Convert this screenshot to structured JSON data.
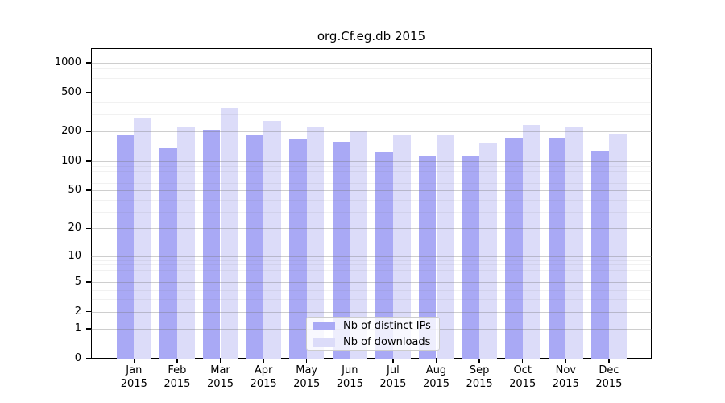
{
  "chart_data": {
    "type": "bar",
    "title": "org.Cf.eg.db 2015",
    "categories": [
      "Jan",
      "Feb",
      "Mar",
      "Apr",
      "May",
      "Jun",
      "Jul",
      "Aug",
      "Sep",
      "Oct",
      "Nov",
      "Dec"
    ],
    "year": "2015",
    "series": [
      {
        "name": "Nb of distinct IPs",
        "color": "#a9a9f5",
        "values": [
          183,
          135,
          210,
          185,
          167,
          157,
          123,
          111,
          114,
          175,
          172,
          127
        ]
      },
      {
        "name": "Nb of downloads",
        "color": "#dcdcf9",
        "values": [
          275,
          220,
          350,
          257,
          220,
          200,
          188,
          185,
          156,
          235,
          222,
          192
        ]
      }
    ],
    "yscale": "log1p",
    "ylim": [
      0,
      1100
    ],
    "yticks": [
      0,
      1,
      2,
      5,
      10,
      20,
      50,
      100,
      200,
      500,
      1000
    ],
    "minor_gridlines": [
      3,
      4,
      6,
      7,
      8,
      9,
      30,
      40,
      60,
      70,
      80,
      90,
      300,
      400,
      600,
      700,
      800,
      900
    ],
    "grid": true,
    "legend_position": "bottom-center",
    "xlabel": "",
    "ylabel": ""
  }
}
